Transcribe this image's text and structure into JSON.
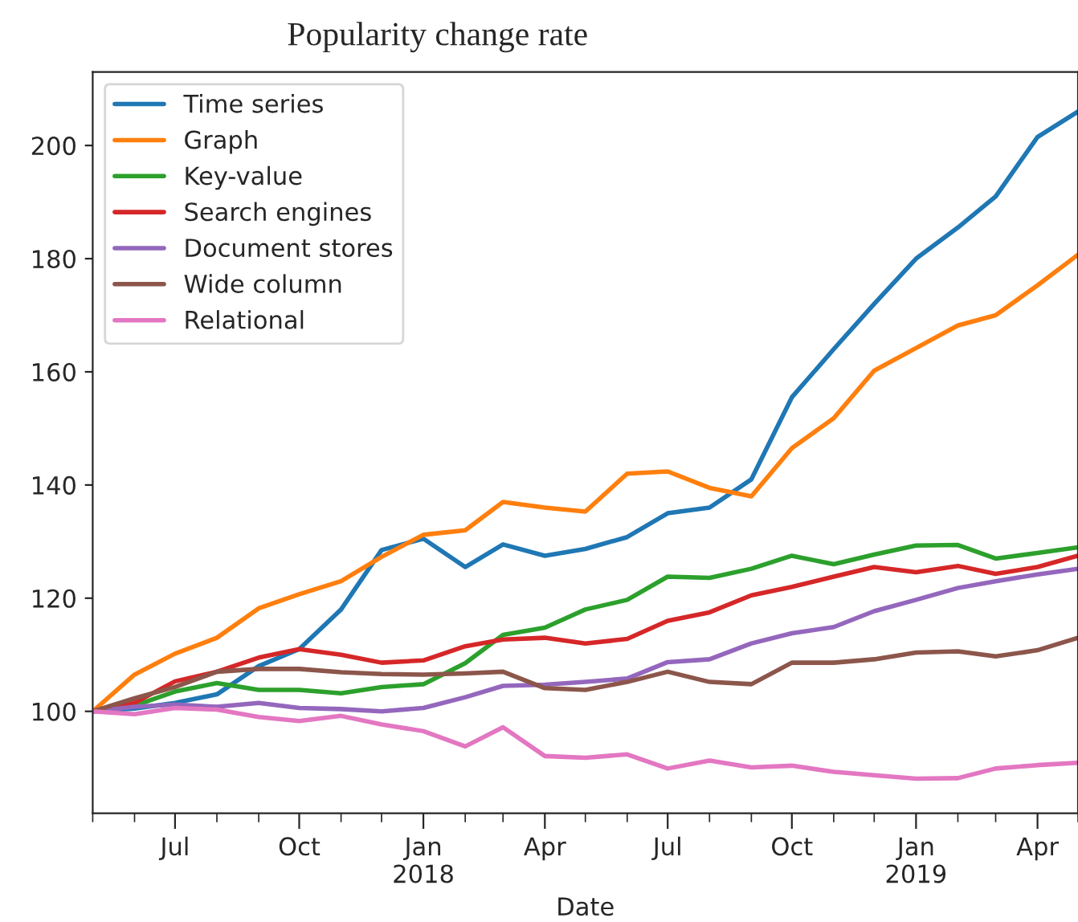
{
  "chart_data": {
    "type": "line",
    "title": "Popularity change rate",
    "xlabel": "Date",
    "x": [
      "2017-05",
      "2017-06",
      "2017-07",
      "2017-08",
      "2017-09",
      "2017-10",
      "2017-11",
      "2017-12",
      "2018-01",
      "2018-02",
      "2018-03",
      "2018-04",
      "2018-05",
      "2018-06",
      "2018-07",
      "2018-08",
      "2018-09",
      "2018-10",
      "2018-11",
      "2018-12",
      "2019-01",
      "2019-02",
      "2019-03",
      "2019-04",
      "2019-05"
    ],
    "series": [
      {
        "name": "Time series",
        "color": "#1f77b4",
        "values": [
          100,
          100.5,
          101.5,
          103,
          108,
          111,
          118,
          128.5,
          130.5,
          125.5,
          129.5,
          127.5,
          128.7,
          130.8,
          135,
          136,
          141,
          155.5,
          164,
          172,
          180,
          185.5,
          191,
          201.5,
          206
        ]
      },
      {
        "name": "Graph",
        "color": "#ff7f0e",
        "values": [
          100,
          106.5,
          110.2,
          113,
          118.2,
          120.7,
          123,
          127.3,
          131.2,
          132,
          137,
          136,
          135.3,
          142,
          142.4,
          139.5,
          138,
          146.5,
          151.8,
          160.2,
          164.2,
          168.2,
          170,
          175.3,
          180.7
        ]
      },
      {
        "name": "Key-value",
        "color": "#2ca02c",
        "values": [
          100,
          101,
          103.5,
          105,
          103.8,
          103.8,
          103.2,
          104.3,
          104.8,
          108.5,
          113.5,
          114.8,
          118,
          119.7,
          123.8,
          123.6,
          125.2,
          127.5,
          126,
          127.7,
          129.3,
          129.4,
          127,
          128,
          129
        ]
      },
      {
        "name": "Search engines",
        "color": "#d62728",
        "values": [
          100,
          101.5,
          105.3,
          107,
          109.5,
          111,
          110,
          108.6,
          109,
          111.5,
          112.7,
          113,
          112,
          112.8,
          116,
          117.5,
          120.5,
          122,
          123.8,
          125.5,
          124.6,
          125.7,
          124.3,
          125.5,
          127.5
        ]
      },
      {
        "name": "Document stores",
        "color": "#9467bd",
        "values": [
          100,
          100.8,
          101.2,
          100.8,
          101.5,
          100.6,
          100.4,
          100,
          100.6,
          102.5,
          104.5,
          104.7,
          105.2,
          105.8,
          108.7,
          109.2,
          112,
          113.8,
          114.9,
          117.7,
          119.7,
          121.8,
          123,
          124.2,
          125.2
        ]
      },
      {
        "name": "Wide column",
        "color": "#8c564b",
        "values": [
          100,
          102.3,
          104.3,
          107,
          107.5,
          107.5,
          106.9,
          106.6,
          106.5,
          106.7,
          107,
          104.1,
          103.8,
          105.2,
          107,
          105.2,
          104.8,
          108.6,
          108.6,
          109.2,
          110.4,
          110.6,
          109.7,
          110.8,
          113
        ]
      },
      {
        "name": "Relational",
        "color": "#e377c2",
        "values": [
          100,
          99.5,
          100.6,
          100.3,
          99,
          98.3,
          99.2,
          97.7,
          96.5,
          93.8,
          97.2,
          92.1,
          91.8,
          92.4,
          89.9,
          91.3,
          90.1,
          90.4,
          89.3,
          88.7,
          88.1,
          88.2,
          89.9,
          90.5,
          90.9
        ]
      }
    ],
    "xlim": [
      "2017-05",
      "2019-05"
    ],
    "xticks": [
      {
        "value": "2017-05",
        "label": null
      },
      {
        "value": "2017-06",
        "label": null
      },
      {
        "value": "2017-07",
        "label": "Jul"
      },
      {
        "value": "2017-08",
        "label": null
      },
      {
        "value": "2017-09",
        "label": null
      },
      {
        "value": "2017-10",
        "label": "Oct"
      },
      {
        "value": "2017-11",
        "label": null
      },
      {
        "value": "2017-12",
        "label": null
      },
      {
        "value": "2018-01",
        "label": "Jan\n2018"
      },
      {
        "value": "2018-02",
        "label": null
      },
      {
        "value": "2018-03",
        "label": null
      },
      {
        "value": "2018-04",
        "label": "Apr"
      },
      {
        "value": "2018-05",
        "label": null
      },
      {
        "value": "2018-06",
        "label": null
      },
      {
        "value": "2018-07",
        "label": "Jul"
      },
      {
        "value": "2018-08",
        "label": null
      },
      {
        "value": "2018-09",
        "label": null
      },
      {
        "value": "2018-10",
        "label": "Oct"
      },
      {
        "value": "2018-11",
        "label": null
      },
      {
        "value": "2018-12",
        "label": null
      },
      {
        "value": "2019-01",
        "label": "Jan\n2019"
      },
      {
        "value": "2019-02",
        "label": null
      },
      {
        "value": "2019-03",
        "label": null
      },
      {
        "value": "2019-04",
        "label": "Apr"
      },
      {
        "value": "2019-05",
        "label": null
      }
    ],
    "ylim": [
      82,
      213
    ],
    "yticks": [
      100,
      120,
      140,
      160,
      180,
      200
    ],
    "grid": false,
    "legend": "top left",
    "line_style": "solid",
    "marker": "none"
  }
}
